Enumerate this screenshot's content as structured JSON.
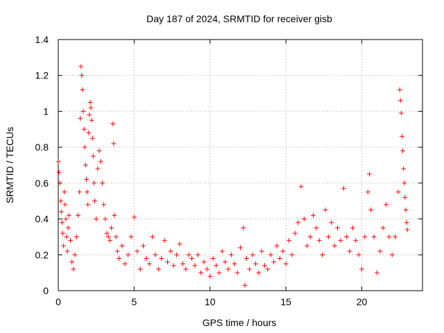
{
  "chart_data": {
    "type": "scatter",
    "title": "Day 187 of 2024, SRMTID for receiver gisb",
    "xlabel": "GPS time / hours",
    "ylabel": "SRMTID / TECUs",
    "xlim": [
      0,
      24
    ],
    "ylim": [
      0,
      1.4
    ],
    "xticks": [
      0,
      5,
      10,
      15,
      20
    ],
    "xtick_labels": [
      "0",
      "5",
      "10",
      "15",
      "20"
    ],
    "yticks": [
      0,
      0.2,
      0.4,
      0.6,
      0.8,
      1.0,
      1.2,
      1.4
    ],
    "ytick_labels": [
      "0",
      "0.2",
      "0.4",
      "0.6",
      "0.8",
      "1",
      "1.2",
      "1.4"
    ],
    "grid": true,
    "marker": "plus",
    "color": "#ff0000",
    "series": [
      {
        "name": "SRMTID",
        "points": [
          [
            0.0,
            0.72
          ],
          [
            0.05,
            0.66
          ],
          [
            0.1,
            0.6
          ],
          [
            0.15,
            0.5
          ],
          [
            0.2,
            0.44
          ],
          [
            0.25,
            0.38
          ],
          [
            0.3,
            0.32
          ],
          [
            0.35,
            0.25
          ],
          [
            0.4,
            0.55
          ],
          [
            0.45,
            0.48
          ],
          [
            0.5,
            0.4
          ],
          [
            0.55,
            0.3
          ],
          [
            0.6,
            0.22
          ],
          [
            0.65,
            0.35
          ],
          [
            0.7,
            0.42
          ],
          [
            0.8,
            0.28
          ],
          [
            0.9,
            0.16
          ],
          [
            1.0,
            0.12
          ],
          [
            1.1,
            0.2
          ],
          [
            1.2,
            0.3
          ],
          [
            1.3,
            0.42
          ],
          [
            1.4,
            0.55
          ],
          [
            1.45,
            0.96
          ],
          [
            1.5,
            1.25
          ],
          [
            1.55,
            1.2
          ],
          [
            1.6,
            1.12
          ],
          [
            1.65,
            1.0
          ],
          [
            1.7,
            0.9
          ],
          [
            1.75,
            0.8
          ],
          [
            1.8,
            0.7
          ],
          [
            1.85,
            0.62
          ],
          [
            1.9,
            0.55
          ],
          [
            1.95,
            0.48
          ],
          [
            2.0,
            0.88
          ],
          [
            2.05,
            0.98
          ],
          [
            2.1,
            1.05
          ],
          [
            2.15,
            1.02
          ],
          [
            2.2,
            0.95
          ],
          [
            2.25,
            0.85
          ],
          [
            2.3,
            0.75
          ],
          [
            2.35,
            0.6
          ],
          [
            2.4,
            0.5
          ],
          [
            2.5,
            0.4
          ],
          [
            2.6,
            0.68
          ],
          [
            2.7,
            0.78
          ],
          [
            2.8,
            0.72
          ],
          [
            2.9,
            0.6
          ],
          [
            3.0,
            0.48
          ],
          [
            3.1,
            0.4
          ],
          [
            3.2,
            0.32
          ],
          [
            3.3,
            0.3
          ],
          [
            3.4,
            0.28
          ],
          [
            3.5,
            0.35
          ],
          [
            3.6,
            0.93
          ],
          [
            3.65,
            0.82
          ],
          [
            3.7,
            0.42
          ],
          [
            3.8,
            0.3
          ],
          [
            3.9,
            0.22
          ],
          [
            4.0,
            0.18
          ],
          [
            4.2,
            0.25
          ],
          [
            4.4,
            0.15
          ],
          [
            4.6,
            0.2
          ],
          [
            4.8,
            0.3
          ],
          [
            5.0,
            0.41
          ],
          [
            5.2,
            0.22
          ],
          [
            5.4,
            0.12
          ],
          [
            5.6,
            0.25
          ],
          [
            5.8,
            0.18
          ],
          [
            6.0,
            0.15
          ],
          [
            6.2,
            0.3
          ],
          [
            6.4,
            0.2
          ],
          [
            6.6,
            0.12
          ],
          [
            6.8,
            0.18
          ],
          [
            7.0,
            0.28
          ],
          [
            7.2,
            0.16
          ],
          [
            7.4,
            0.22
          ],
          [
            7.6,
            0.14
          ],
          [
            7.8,
            0.2
          ],
          [
            8.0,
            0.26
          ],
          [
            8.2,
            0.15
          ],
          [
            8.4,
            0.12
          ],
          [
            8.6,
            0.2
          ],
          [
            8.8,
            0.18
          ],
          [
            9.0,
            0.14
          ],
          [
            9.2,
            0.2
          ],
          [
            9.4,
            0.1
          ],
          [
            9.6,
            0.16
          ],
          [
            9.8,
            0.12
          ],
          [
            10.0,
            0.08
          ],
          [
            10.2,
            0.18
          ],
          [
            10.4,
            0.14
          ],
          [
            10.6,
            0.1
          ],
          [
            10.8,
            0.22
          ],
          [
            11.0,
            0.16
          ],
          [
            11.2,
            0.12
          ],
          [
            11.4,
            0.2
          ],
          [
            11.6,
            0.15
          ],
          [
            11.8,
            0.1
          ],
          [
            12.0,
            0.24
          ],
          [
            12.2,
            0.35
          ],
          [
            12.3,
            0.03
          ],
          [
            12.4,
            0.18
          ],
          [
            12.6,
            0.12
          ],
          [
            12.8,
            0.2
          ],
          [
            13.0,
            0.15
          ],
          [
            13.2,
            0.1
          ],
          [
            13.4,
            0.22
          ],
          [
            13.6,
            0.14
          ],
          [
            13.8,
            0.12
          ],
          [
            14.0,
            0.2
          ],
          [
            14.2,
            0.16
          ],
          [
            14.4,
            0.25
          ],
          [
            14.6,
            0.18
          ],
          [
            14.8,
            0.22
          ],
          [
            15.0,
            0.15
          ],
          [
            15.2,
            0.28
          ],
          [
            15.4,
            0.2
          ],
          [
            15.6,
            0.32
          ],
          [
            15.8,
            0.38
          ],
          [
            16.0,
            0.58
          ],
          [
            16.2,
            0.4
          ],
          [
            16.4,
            0.25
          ],
          [
            16.6,
            0.3
          ],
          [
            16.8,
            0.42
          ],
          [
            17.0,
            0.35
          ],
          [
            17.2,
            0.28
          ],
          [
            17.4,
            0.2
          ],
          [
            17.6,
            0.45
          ],
          [
            17.8,
            0.3
          ],
          [
            18.0,
            0.38
          ],
          [
            18.2,
            0.25
          ],
          [
            18.4,
            0.35
          ],
          [
            18.6,
            0.28
          ],
          [
            18.8,
            0.57
          ],
          [
            19.0,
            0.3
          ],
          [
            19.2,
            0.22
          ],
          [
            19.4,
            0.35
          ],
          [
            19.6,
            0.28
          ],
          [
            19.8,
            0.2
          ],
          [
            20.0,
            0.12
          ],
          [
            20.2,
            0.3
          ],
          [
            20.4,
            0.55
          ],
          [
            20.5,
            0.65
          ],
          [
            20.6,
            0.45
          ],
          [
            20.8,
            0.3
          ],
          [
            21.0,
            0.1
          ],
          [
            21.2,
            0.22
          ],
          [
            21.4,
            0.35
          ],
          [
            21.6,
            0.48
          ],
          [
            21.8,
            0.3
          ],
          [
            22.0,
            0.2
          ],
          [
            22.2,
            0.3
          ],
          [
            22.4,
            0.55
          ],
          [
            22.5,
            1.12
          ],
          [
            22.55,
            1.06
          ],
          [
            22.6,
            0.99
          ],
          [
            22.65,
            0.86
          ],
          [
            22.7,
            0.78
          ],
          [
            22.75,
            0.68
          ],
          [
            22.8,
            0.6
          ],
          [
            22.85,
            0.52
          ],
          [
            22.9,
            0.45
          ],
          [
            22.95,
            0.38
          ],
          [
            23.0,
            0.34
          ]
        ]
      }
    ]
  }
}
